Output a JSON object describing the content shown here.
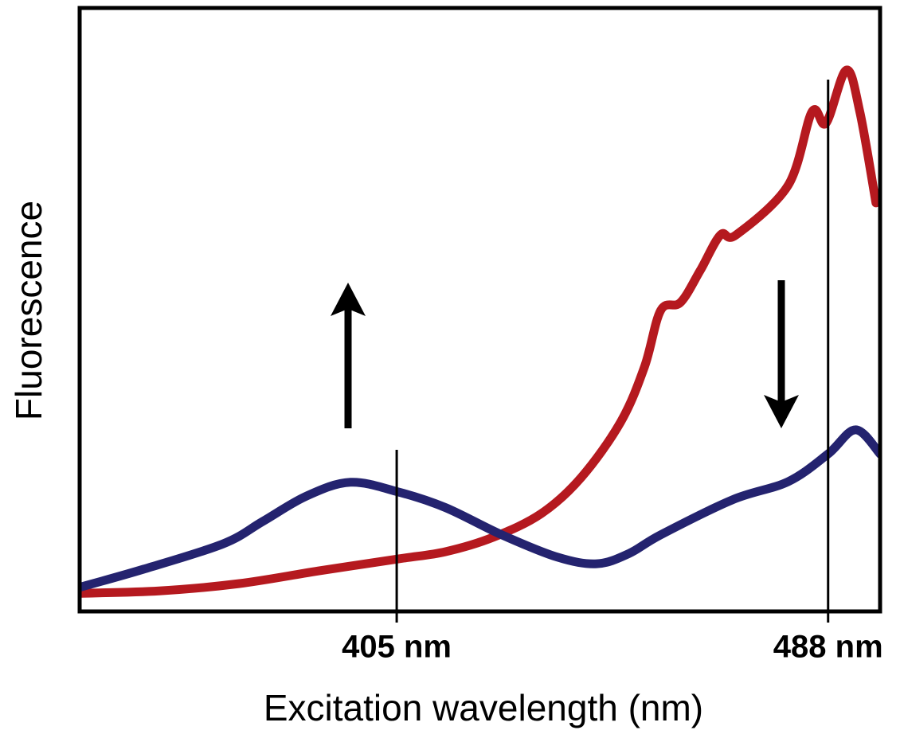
{
  "chart_data": {
    "type": "line",
    "x_label": "Excitation wavelength (nm)",
    "y_label": "Fluorescence",
    "xlim": [
      344,
      498
    ],
    "ylim": [
      0,
      100
    ],
    "xticks": [
      {
        "value": 405,
        "label": "405 nm"
      },
      {
        "value": 488,
        "label": "488 nm"
      }
    ],
    "series": [
      {
        "color": "#b5191f",
        "x": [
          344,
          359.3,
          374.6,
          389.9,
          405.3,
          414.4,
          423.6,
          432.8,
          440.5,
          448.1,
          452.7,
          455.8,
          459.6,
          463.4,
          467.3,
          470.3,
          480.3,
          484.9,
          487.6,
          491.5,
          494.1,
          497.2
        ],
        "values": [
          3.0,
          3.4,
          4.6,
          6.7,
          8.7,
          9.9,
          12.3,
          16.2,
          22.2,
          31.4,
          40.6,
          49.9,
          51.2,
          56.5,
          62.4,
          62.4,
          70.6,
          82.8,
          80.9,
          89.7,
          82.8,
          67.7
        ]
      },
      {
        "color": "#24236f",
        "x": [
          344,
          356.3,
          371.6,
          379.2,
          387.6,
          396.1,
          405.3,
          414.4,
          425.2,
          435.9,
          443.5,
          449.7,
          455.8,
          469.6,
          480.3,
          488.0,
          493.3,
          498
        ],
        "values": [
          4.0,
          7.0,
          11.2,
          14.9,
          19.1,
          21.4,
          19.8,
          17.2,
          12.7,
          9.0,
          7.9,
          9.6,
          12.7,
          18.5,
          21.5,
          26.1,
          30.1,
          26.1
        ]
      }
    ]
  }
}
